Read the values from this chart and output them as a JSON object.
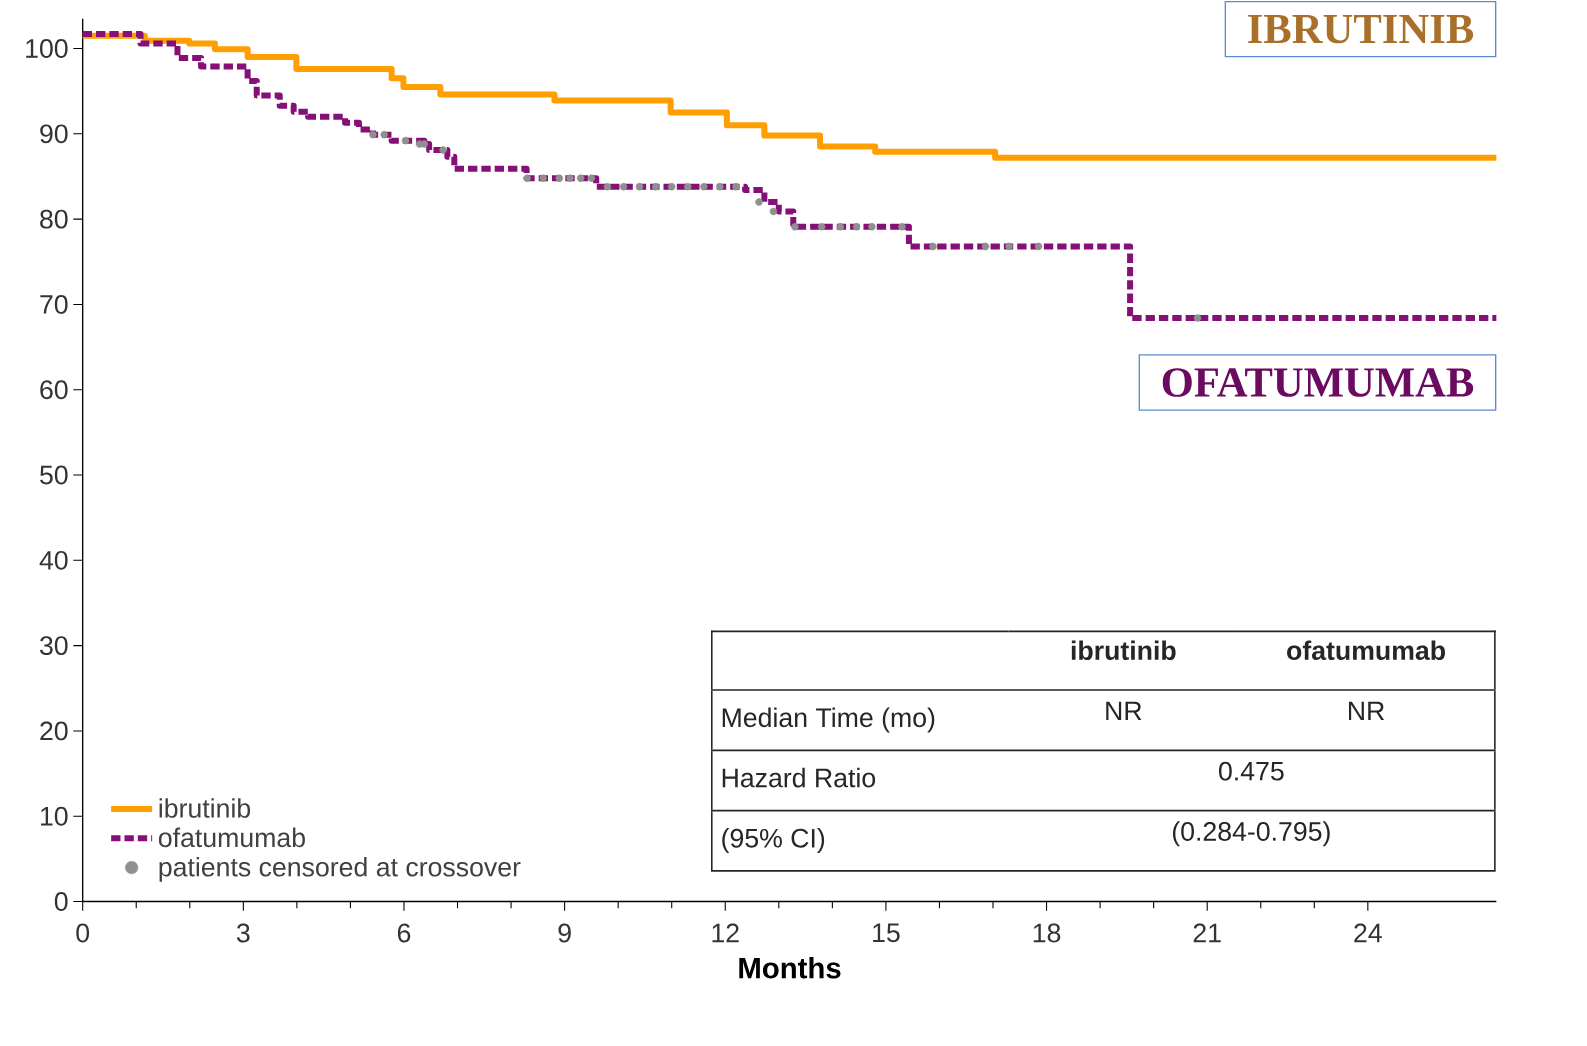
{
  "chart_data": {
    "type": "step",
    "xlabel": "Months",
    "xlim": [
      0,
      26.4
    ],
    "xticks": [
      0,
      3,
      6,
      9,
      12,
      15,
      18,
      21,
      24
    ],
    "ylim": [
      0,
      103.5
    ],
    "yticks": [
      0,
      10,
      20,
      30,
      40,
      50,
      60,
      70,
      80,
      90,
      100
    ],
    "legend": "bottom left",
    "series": [
      {
        "name": "ibrutinib",
        "color": "#ff9e00",
        "line_style": "solid",
        "x": [
          0,
          1.16,
          1.99,
          2.47,
          3.08,
          3.99,
          5.77,
          5.99,
          6.68,
          8.81,
          10.98,
          12.03,
          12.73,
          13.77,
          14.8,
          17.04,
          26.4
        ],
        "values": [
          101.5,
          100.9,
          100.6,
          99.9,
          99.0,
          97.6,
          96.5,
          95.5,
          94.6,
          93.9,
          92.5,
          91.0,
          89.8,
          88.5,
          87.9,
          87.2,
          87.2
        ]
      },
      {
        "name": "ofatumumab",
        "color": "#851077",
        "line_style": "dashed",
        "x": [
          0,
          1.08,
          1.77,
          2.21,
          3.08,
          3.25,
          3.68,
          3.94,
          4.21,
          4.9,
          5.16,
          5.42,
          5.77,
          6.38,
          6.47,
          6.81,
          6.94,
          8.29,
          9.59,
          12.37,
          12.73,
          13.0,
          13.27,
          15.43,
          19.56,
          26.4
        ],
        "values": [
          101.7,
          100.6,
          98.9,
          97.9,
          96.2,
          94.5,
          93.3,
          92.6,
          92.0,
          91.3,
          90.5,
          89.9,
          89.2,
          88.8,
          88.1,
          87.3,
          85.9,
          84.8,
          83.8,
          83.4,
          82.0,
          80.9,
          79.1,
          76.8,
          68.4,
          68.4
        ]
      },
      {
        "name": "patients censored at crossover",
        "type": "scatter",
        "marker": "circle",
        "color": "#909090",
        "x": [
          5.42,
          5.63,
          6.03,
          6.29,
          6.38,
          6.73,
          8.3,
          8.6,
          8.9,
          9.1,
          9.3,
          9.5,
          9.8,
          10.1,
          10.4,
          10.7,
          11.0,
          11.3,
          11.6,
          11.9,
          12.2,
          12.63,
          12.9,
          13.3,
          13.8,
          14.15,
          14.45,
          14.74,
          15.3,
          15.88,
          16.86,
          17.3,
          17.85,
          20.82
        ],
        "values": [
          89.9,
          89.9,
          89.2,
          88.8,
          88.8,
          88.1,
          84.8,
          84.8,
          84.8,
          84.8,
          84.8,
          84.8,
          83.8,
          83.8,
          83.8,
          83.8,
          83.8,
          83.8,
          83.8,
          83.8,
          83.8,
          82.0,
          80.9,
          79.1,
          79.1,
          79.1,
          79.1,
          79.1,
          79.1,
          76.8,
          76.8,
          76.8,
          76.8,
          68.4
        ]
      }
    ],
    "annotations": [
      "IBRUTINIB",
      "OFATUMUMAB",
      "ibrutinib",
      "ofatumumab",
      "Median Time (mo)",
      "NR",
      "NR",
      "Hazard Ratio",
      "0.475",
      "(95% CI)",
      "(0.284-0.795)"
    ]
  }
}
